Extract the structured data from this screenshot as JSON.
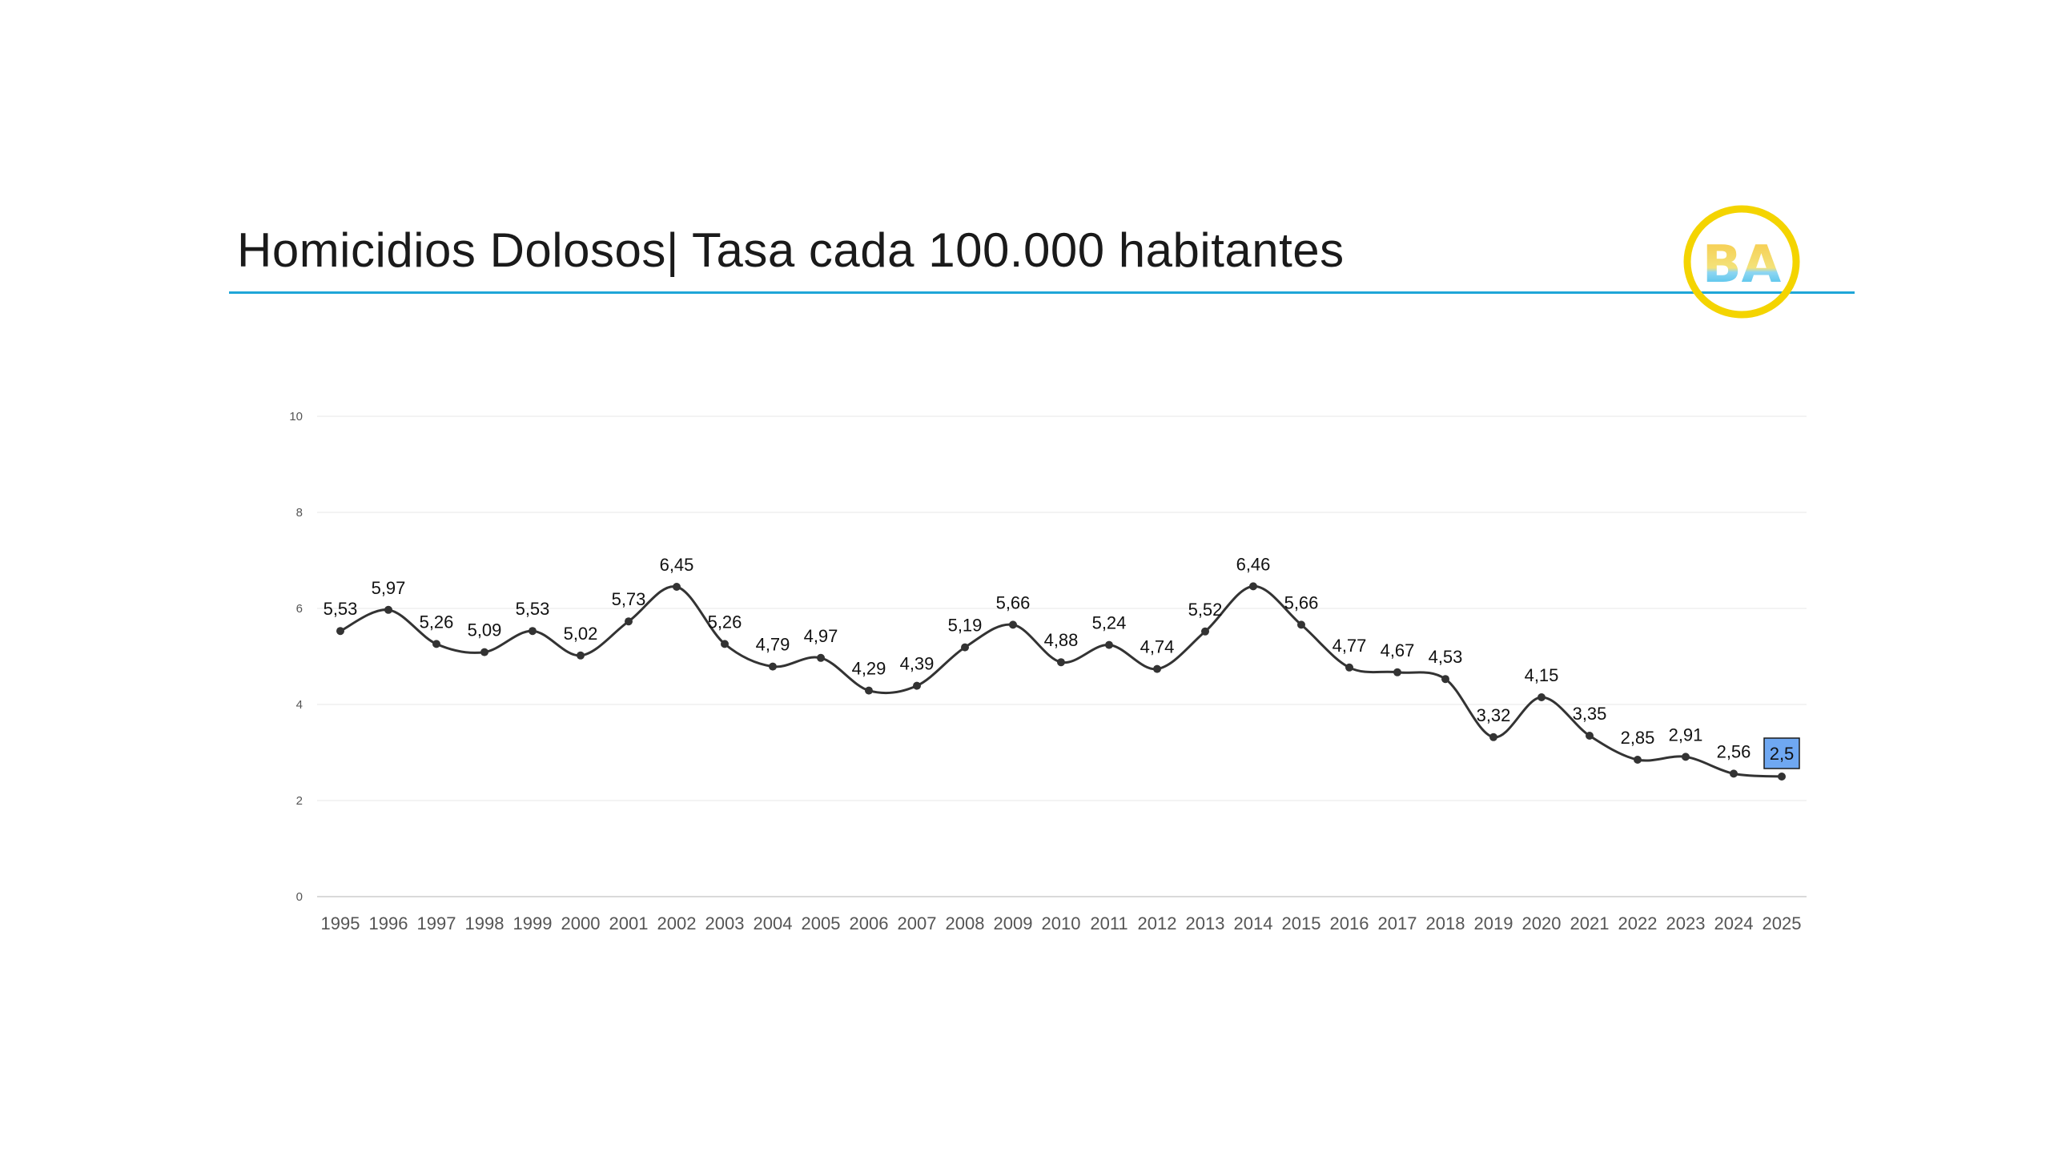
{
  "slide": {
    "title": "Homicidios Dolosos| Tasa cada 100.000 habitantes",
    "logo_text": "BA",
    "logo_icon": "ba-logo-icon",
    "colors": {
      "title_rule": "#1fa6d8",
      "logo_ring": "#f4d400",
      "logo_yellow": "#f7c948",
      "logo_cyan": "#29b6e8",
      "line": "#333333",
      "gridline": "#efefef",
      "highlight_fill": "#6fa8f2"
    }
  },
  "chart_data": {
    "type": "line",
    "smooth": true,
    "title": "",
    "xlabel": "",
    "ylabel": "",
    "ylim": [
      0,
      10
    ],
    "yticks": [
      0,
      2,
      4,
      6,
      8,
      10
    ],
    "grid": true,
    "legend": "none",
    "categories": [
      "1995",
      "1996",
      "1997",
      "1998",
      "1999",
      "2000",
      "2001",
      "2002",
      "2003",
      "2004",
      "2005",
      "2006",
      "2007",
      "2008",
      "2009",
      "2010",
      "2011",
      "2012",
      "2013",
      "2014",
      "2015",
      "2016",
      "2017",
      "2018",
      "2019",
      "2020",
      "2021",
      "2022",
      "2023",
      "2024",
      "2025"
    ],
    "values": [
      5.53,
      5.97,
      5.26,
      5.09,
      5.53,
      5.02,
      5.73,
      6.45,
      5.26,
      4.79,
      4.97,
      4.29,
      4.39,
      5.19,
      5.66,
      4.88,
      5.24,
      4.74,
      5.52,
      6.46,
      5.66,
      4.77,
      4.67,
      4.53,
      3.32,
      4.15,
      3.35,
      2.85,
      2.91,
      2.56,
      2.5
    ],
    "data_labels": [
      "5,53",
      "5,97",
      "5,26",
      "5,09",
      "5,53",
      "5,02",
      "5,73",
      "6,45",
      "5,26",
      "4,79",
      "4,97",
      "4,29",
      "4,39",
      "5,19",
      "5,66",
      "4,88",
      "5,24",
      "4,74",
      "5,52",
      "6,46",
      "5,66",
      "4,77",
      "4,67",
      "4,53",
      "3,32",
      "4,15",
      "3,35",
      "2,85",
      "2,91",
      "2,56",
      "2,5"
    ],
    "highlighted_category": "2025"
  }
}
